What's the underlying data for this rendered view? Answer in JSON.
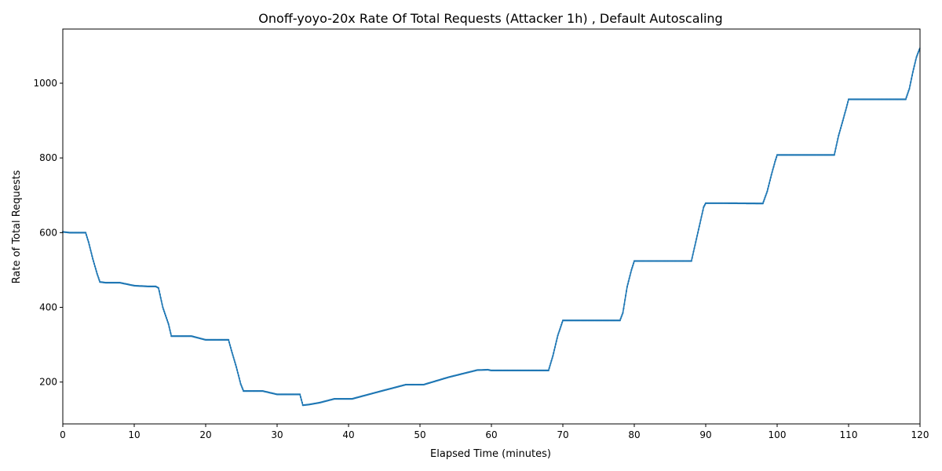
{
  "chart_data": {
    "type": "line",
    "title": "Onoff-yoyo-20x Rate Of Total Requests (Attacker 1h) , Default Autoscaling",
    "xlabel": "Elapsed Time (minutes)",
    "ylabel": "Rate of Total Requests",
    "xlim": [
      0,
      120
    ],
    "ylim": [
      88,
      1145
    ],
    "xticks": [
      0,
      10,
      20,
      30,
      40,
      50,
      60,
      70,
      80,
      90,
      100,
      110,
      120
    ],
    "yticks": [
      200,
      400,
      600,
      800,
      1000
    ],
    "grid": false,
    "legend": "none",
    "series_color": "#1f77b4",
    "series": [
      {
        "points": [
          [
            0,
            602
          ],
          [
            1,
            600
          ],
          [
            3.2,
            600
          ],
          [
            3.6,
            575
          ],
          [
            4.2,
            530
          ],
          [
            4.8,
            490
          ],
          [
            5.2,
            468
          ],
          [
            6,
            466
          ],
          [
            8,
            466
          ],
          [
            10,
            458
          ],
          [
            12,
            456
          ],
          [
            13,
            456
          ],
          [
            13.4,
            452
          ],
          [
            14,
            400
          ],
          [
            14.8,
            355
          ],
          [
            15.2,
            323
          ],
          [
            16,
            323
          ],
          [
            18,
            323
          ],
          [
            20,
            313
          ],
          [
            23.2,
            313
          ],
          [
            23.6,
            285
          ],
          [
            24.3,
            240
          ],
          [
            24.9,
            195
          ],
          [
            25.3,
            176
          ],
          [
            26,
            176
          ],
          [
            28,
            176
          ],
          [
            30,
            167
          ],
          [
            33.2,
            167
          ],
          [
            33.6,
            138
          ],
          [
            34.5,
            140
          ],
          [
            36,
            145
          ],
          [
            38,
            155
          ],
          [
            40.5,
            155
          ],
          [
            44,
            173
          ],
          [
            48,
            193
          ],
          [
            50.5,
            193
          ],
          [
            54,
            213
          ],
          [
            58,
            232
          ],
          [
            59.5,
            233
          ],
          [
            60,
            231
          ],
          [
            68,
            231
          ],
          [
            68.6,
            270
          ],
          [
            69.3,
            325
          ],
          [
            70,
            365
          ],
          [
            72,
            365
          ],
          [
            78,
            365
          ],
          [
            78.4,
            385
          ],
          [
            79,
            455
          ],
          [
            79.6,
            500
          ],
          [
            80,
            524
          ],
          [
            82,
            524
          ],
          [
            88,
            524
          ],
          [
            88.6,
            575
          ],
          [
            89.2,
            625
          ],
          [
            89.7,
            668
          ],
          [
            90,
            679
          ],
          [
            92,
            679
          ],
          [
            98,
            678
          ],
          [
            98.6,
            710
          ],
          [
            99.2,
            755
          ],
          [
            99.7,
            790
          ],
          [
            100,
            808
          ],
          [
            102,
            808
          ],
          [
            108,
            808
          ],
          [
            108.6,
            860
          ],
          [
            109.2,
            900
          ],
          [
            109.7,
            935
          ],
          [
            110,
            957
          ],
          [
            112,
            957
          ],
          [
            118,
            957
          ],
          [
            118.5,
            985
          ],
          [
            119,
            1030
          ],
          [
            119.5,
            1070
          ],
          [
            120,
            1095
          ]
        ]
      }
    ]
  }
}
